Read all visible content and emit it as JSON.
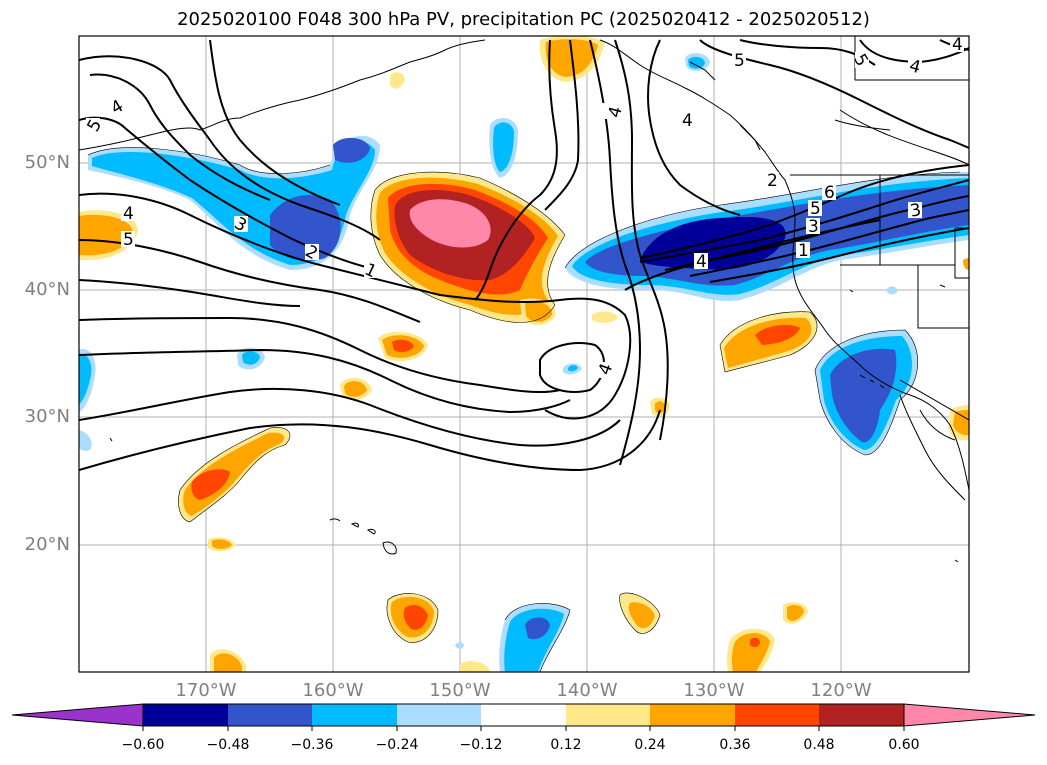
{
  "title": "2025020100 F048 300 hPa PV, precipitation PC (2025020412 - 2025020512)",
  "lat_labels": [
    "50°N",
    "40°N",
    "30°N",
    "20°N"
  ],
  "lon_labels": [
    "170°W",
    "160°W",
    "150°W",
    "140°W",
    "130°W",
    "120°W"
  ],
  "contour_labels": [
    "5",
    "4",
    "4",
    "5",
    "4",
    "3",
    "2",
    "1",
    "4",
    "4",
    "4",
    "5",
    "4",
    "3",
    "6",
    "5",
    "3",
    "2",
    "1",
    "5",
    "4",
    "4"
  ],
  "colorbar": {
    "labels": [
      "−0.60",
      "−0.48",
      "−0.36",
      "−0.24",
      "−0.12",
      "0.12",
      "0.24",
      "0.36",
      "0.48",
      "0.60"
    ],
    "colors": [
      "#9933cc",
      "#000099",
      "#3355cc",
      "#00bbff",
      "#aaddff",
      "#ffffff",
      "#ffe88a",
      "#ffa500",
      "#ff4500",
      "#b22222",
      "#ff88aa"
    ]
  },
  "fill_colors": {
    "neg1": "#aaddff",
    "neg2": "#00bbff",
    "neg3": "#3355cc",
    "neg4": "#000099",
    "pos1": "#ffe88a",
    "pos2": "#ffa500",
    "pos3": "#ff4500",
    "pos4": "#b22222",
    "pos5": "#ff88aa"
  }
}
